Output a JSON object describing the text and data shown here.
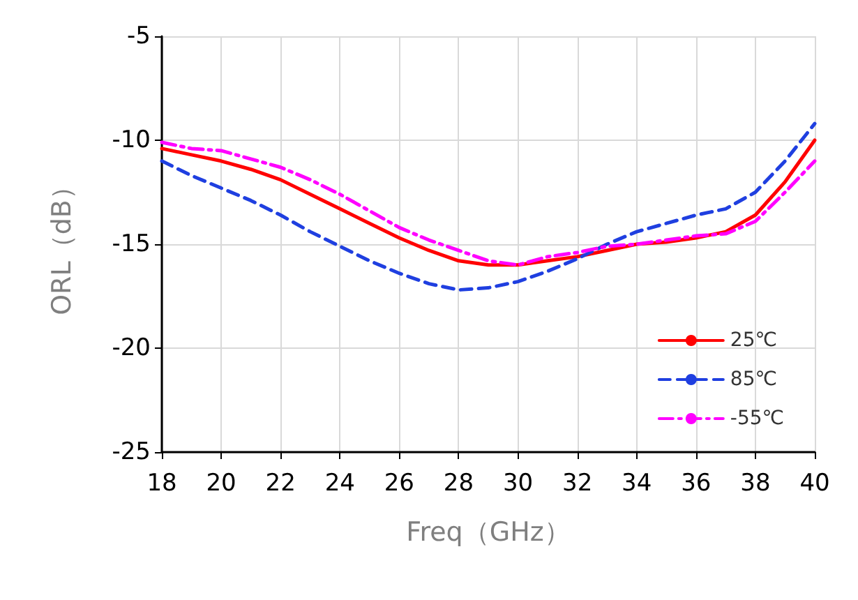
{
  "chart_data": {
    "type": "line",
    "xlabel": "Freq（GHz）",
    "ylabel": "ORL（dB）",
    "x": [
      18,
      19,
      20,
      21,
      22,
      23,
      24,
      25,
      26,
      27,
      28,
      29,
      30,
      31,
      32,
      33,
      34,
      35,
      36,
      37,
      38,
      39,
      40
    ],
    "series": [
      {
        "name": "25℃",
        "color": "#ff0000",
        "line_style": "solid",
        "values": [
          -10.4,
          -10.7,
          -11.0,
          -11.4,
          -11.9,
          -12.6,
          -13.3,
          -14.0,
          -14.7,
          -15.3,
          -15.8,
          -16.0,
          -16.0,
          -15.8,
          -15.6,
          -15.3,
          -15.0,
          -14.9,
          -14.7,
          -14.4,
          -13.6,
          -12.0,
          -10.0
        ]
      },
      {
        "name": "85℃",
        "color": "#1f3fe0",
        "line_style": "dashed",
        "values": [
          -11.0,
          -11.7,
          -12.3,
          -12.9,
          -13.6,
          -14.4,
          -15.1,
          -15.8,
          -16.4,
          -16.9,
          -17.2,
          -17.1,
          -16.8,
          -16.3,
          -15.7,
          -15.0,
          -14.4,
          -14.0,
          -13.6,
          -13.3,
          -12.5,
          -11.0,
          -9.2
        ]
      },
      {
        "name": "-55℃",
        "color": "#ff00ff",
        "line_style": "dashdot",
        "values": [
          -10.1,
          -10.4,
          -10.5,
          -10.9,
          -11.3,
          -11.9,
          -12.6,
          -13.4,
          -14.2,
          -14.8,
          -15.3,
          -15.8,
          -16.0,
          -15.6,
          -15.4,
          -15.1,
          -15.0,
          -14.8,
          -14.6,
          -14.5,
          -13.9,
          -12.5,
          -11.0
        ]
      }
    ],
    "xlim": [
      18,
      40
    ],
    "xticks": [
      18,
      20,
      22,
      24,
      26,
      28,
      30,
      32,
      34,
      36,
      38,
      40
    ],
    "ylim": [
      -25,
      -5
    ],
    "yticks": [
      -25,
      -20,
      -15,
      -10,
      -5
    ],
    "grid": true,
    "legend": "bottom right",
    "marker": "none"
  }
}
